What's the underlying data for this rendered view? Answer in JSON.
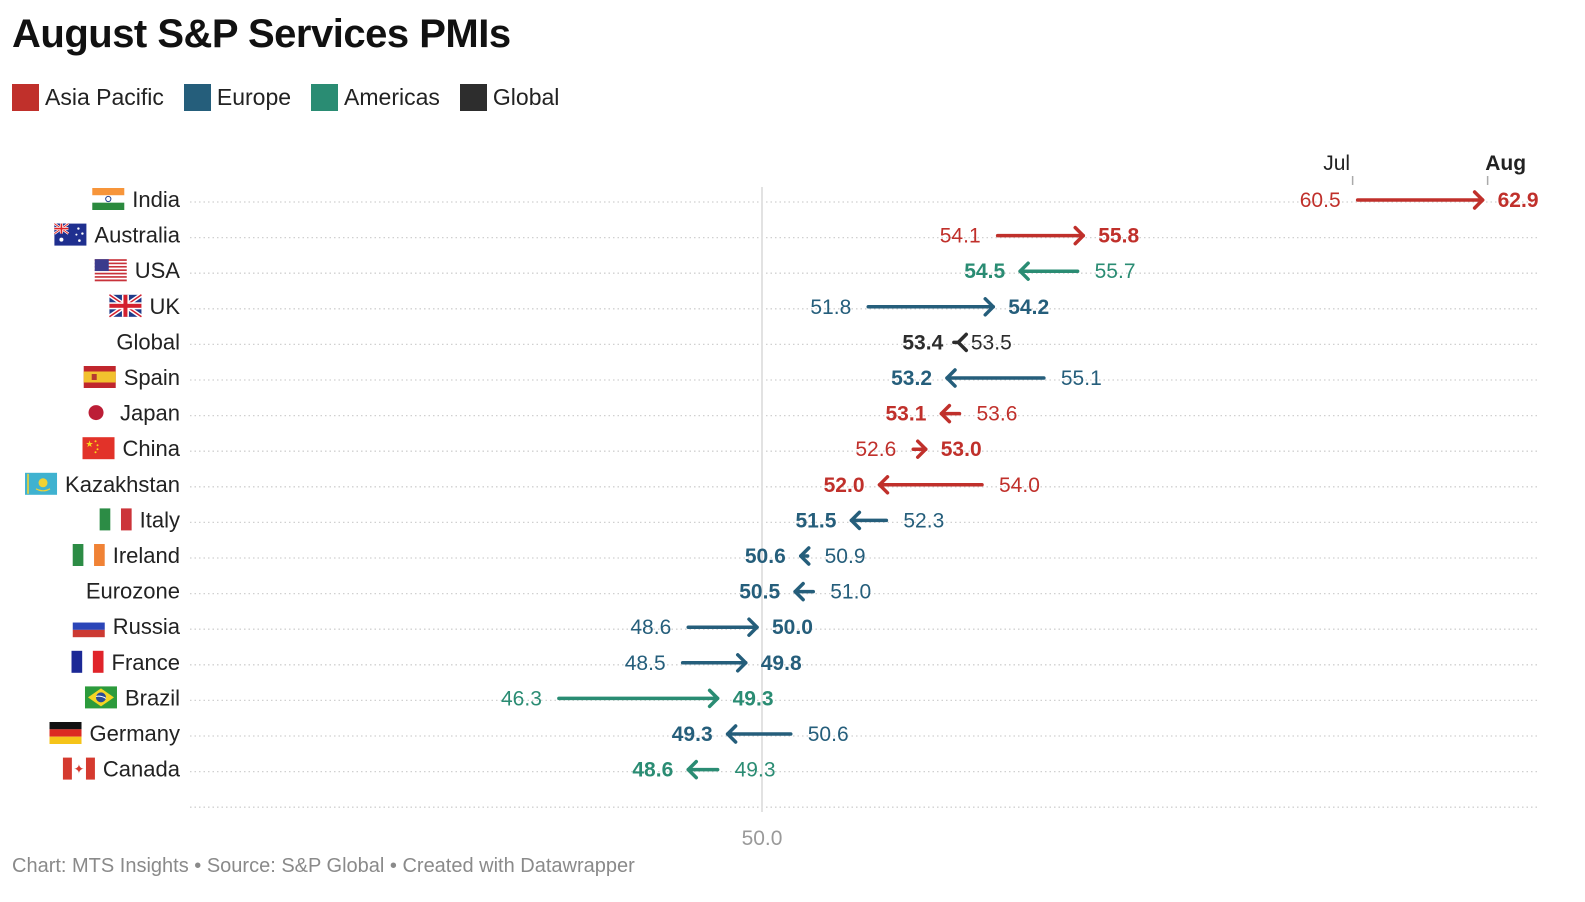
{
  "title": "August S&P Services PMIs",
  "legend": [
    {
      "label": "Asia Pacific",
      "color": "#c0302b"
    },
    {
      "label": "Europe",
      "color": "#255e7b"
    },
    {
      "label": "Americas",
      "color": "#2a8c73"
    },
    {
      "label": "Global",
      "color": "#2d2d2d"
    }
  ],
  "footer": "Chart: MTS Insights • Source: S&P Global • Created with Datawrapper",
  "chart_data": {
    "type": "arrow-dot",
    "title": "August S&P Services PMIs",
    "column_headers": {
      "start": "Jul",
      "end": "Aug"
    },
    "x_reference_line": 50.0,
    "x_tick_labels": [
      "50.0"
    ],
    "xlim": [
      40.2,
      63.9
    ],
    "grid": "horizontal-dotted",
    "legend_placement": "top-left",
    "series": [
      "Jul",
      "Aug"
    ],
    "categories": [
      "India",
      "Australia",
      "USA",
      "UK",
      "Global",
      "Spain",
      "Japan",
      "China",
      "Kazakhstan",
      "Italy",
      "Ireland",
      "Eurozone",
      "Russia",
      "France",
      "Brazil",
      "Germany",
      "Canada"
    ],
    "rows": [
      {
        "label": "India",
        "flag": "india",
        "region": "Asia Pacific",
        "jul": 60.5,
        "aug": 62.9
      },
      {
        "label": "Australia",
        "flag": "australia",
        "region": "Asia Pacific",
        "jul": 54.1,
        "aug": 55.8
      },
      {
        "label": "USA",
        "flag": "usa",
        "region": "Americas",
        "jul": 55.7,
        "aug": 54.5
      },
      {
        "label": "UK",
        "flag": "uk",
        "region": "Europe",
        "jul": 51.8,
        "aug": 54.2
      },
      {
        "label": "Global",
        "flag": "",
        "region": "Global",
        "jul": 53.5,
        "aug": 53.4
      },
      {
        "label": "Spain",
        "flag": "spain",
        "region": "Europe",
        "jul": 55.1,
        "aug": 53.2
      },
      {
        "label": "Japan",
        "flag": "japan",
        "region": "Asia Pacific",
        "jul": 53.6,
        "aug": 53.1
      },
      {
        "label": "China",
        "flag": "china",
        "region": "Asia Pacific",
        "jul": 52.6,
        "aug": 53.0
      },
      {
        "label": "Kazakhstan",
        "flag": "kazakhstan",
        "region": "Asia Pacific",
        "jul": 54.0,
        "aug": 52.0
      },
      {
        "label": "Italy",
        "flag": "italy",
        "region": "Europe",
        "jul": 52.3,
        "aug": 51.5
      },
      {
        "label": "Ireland",
        "flag": "ireland",
        "region": "Europe",
        "jul": 50.9,
        "aug": 50.6
      },
      {
        "label": "Eurozone",
        "flag": "",
        "region": "Europe",
        "jul": 51.0,
        "aug": 50.5
      },
      {
        "label": "Russia",
        "flag": "russia",
        "region": "Europe",
        "jul": 48.6,
        "aug": 50.0
      },
      {
        "label": "France",
        "flag": "france",
        "region": "Europe",
        "jul": 48.5,
        "aug": 49.8
      },
      {
        "label": "Brazil",
        "flag": "brazil",
        "region": "Americas",
        "jul": 46.3,
        "aug": 49.3
      },
      {
        "label": "Germany",
        "flag": "germany",
        "region": "Europe",
        "jul": 50.6,
        "aug": 49.3
      },
      {
        "label": "Canada",
        "flag": "canada",
        "region": "Americas",
        "jul": 49.3,
        "aug": 48.6
      }
    ]
  }
}
